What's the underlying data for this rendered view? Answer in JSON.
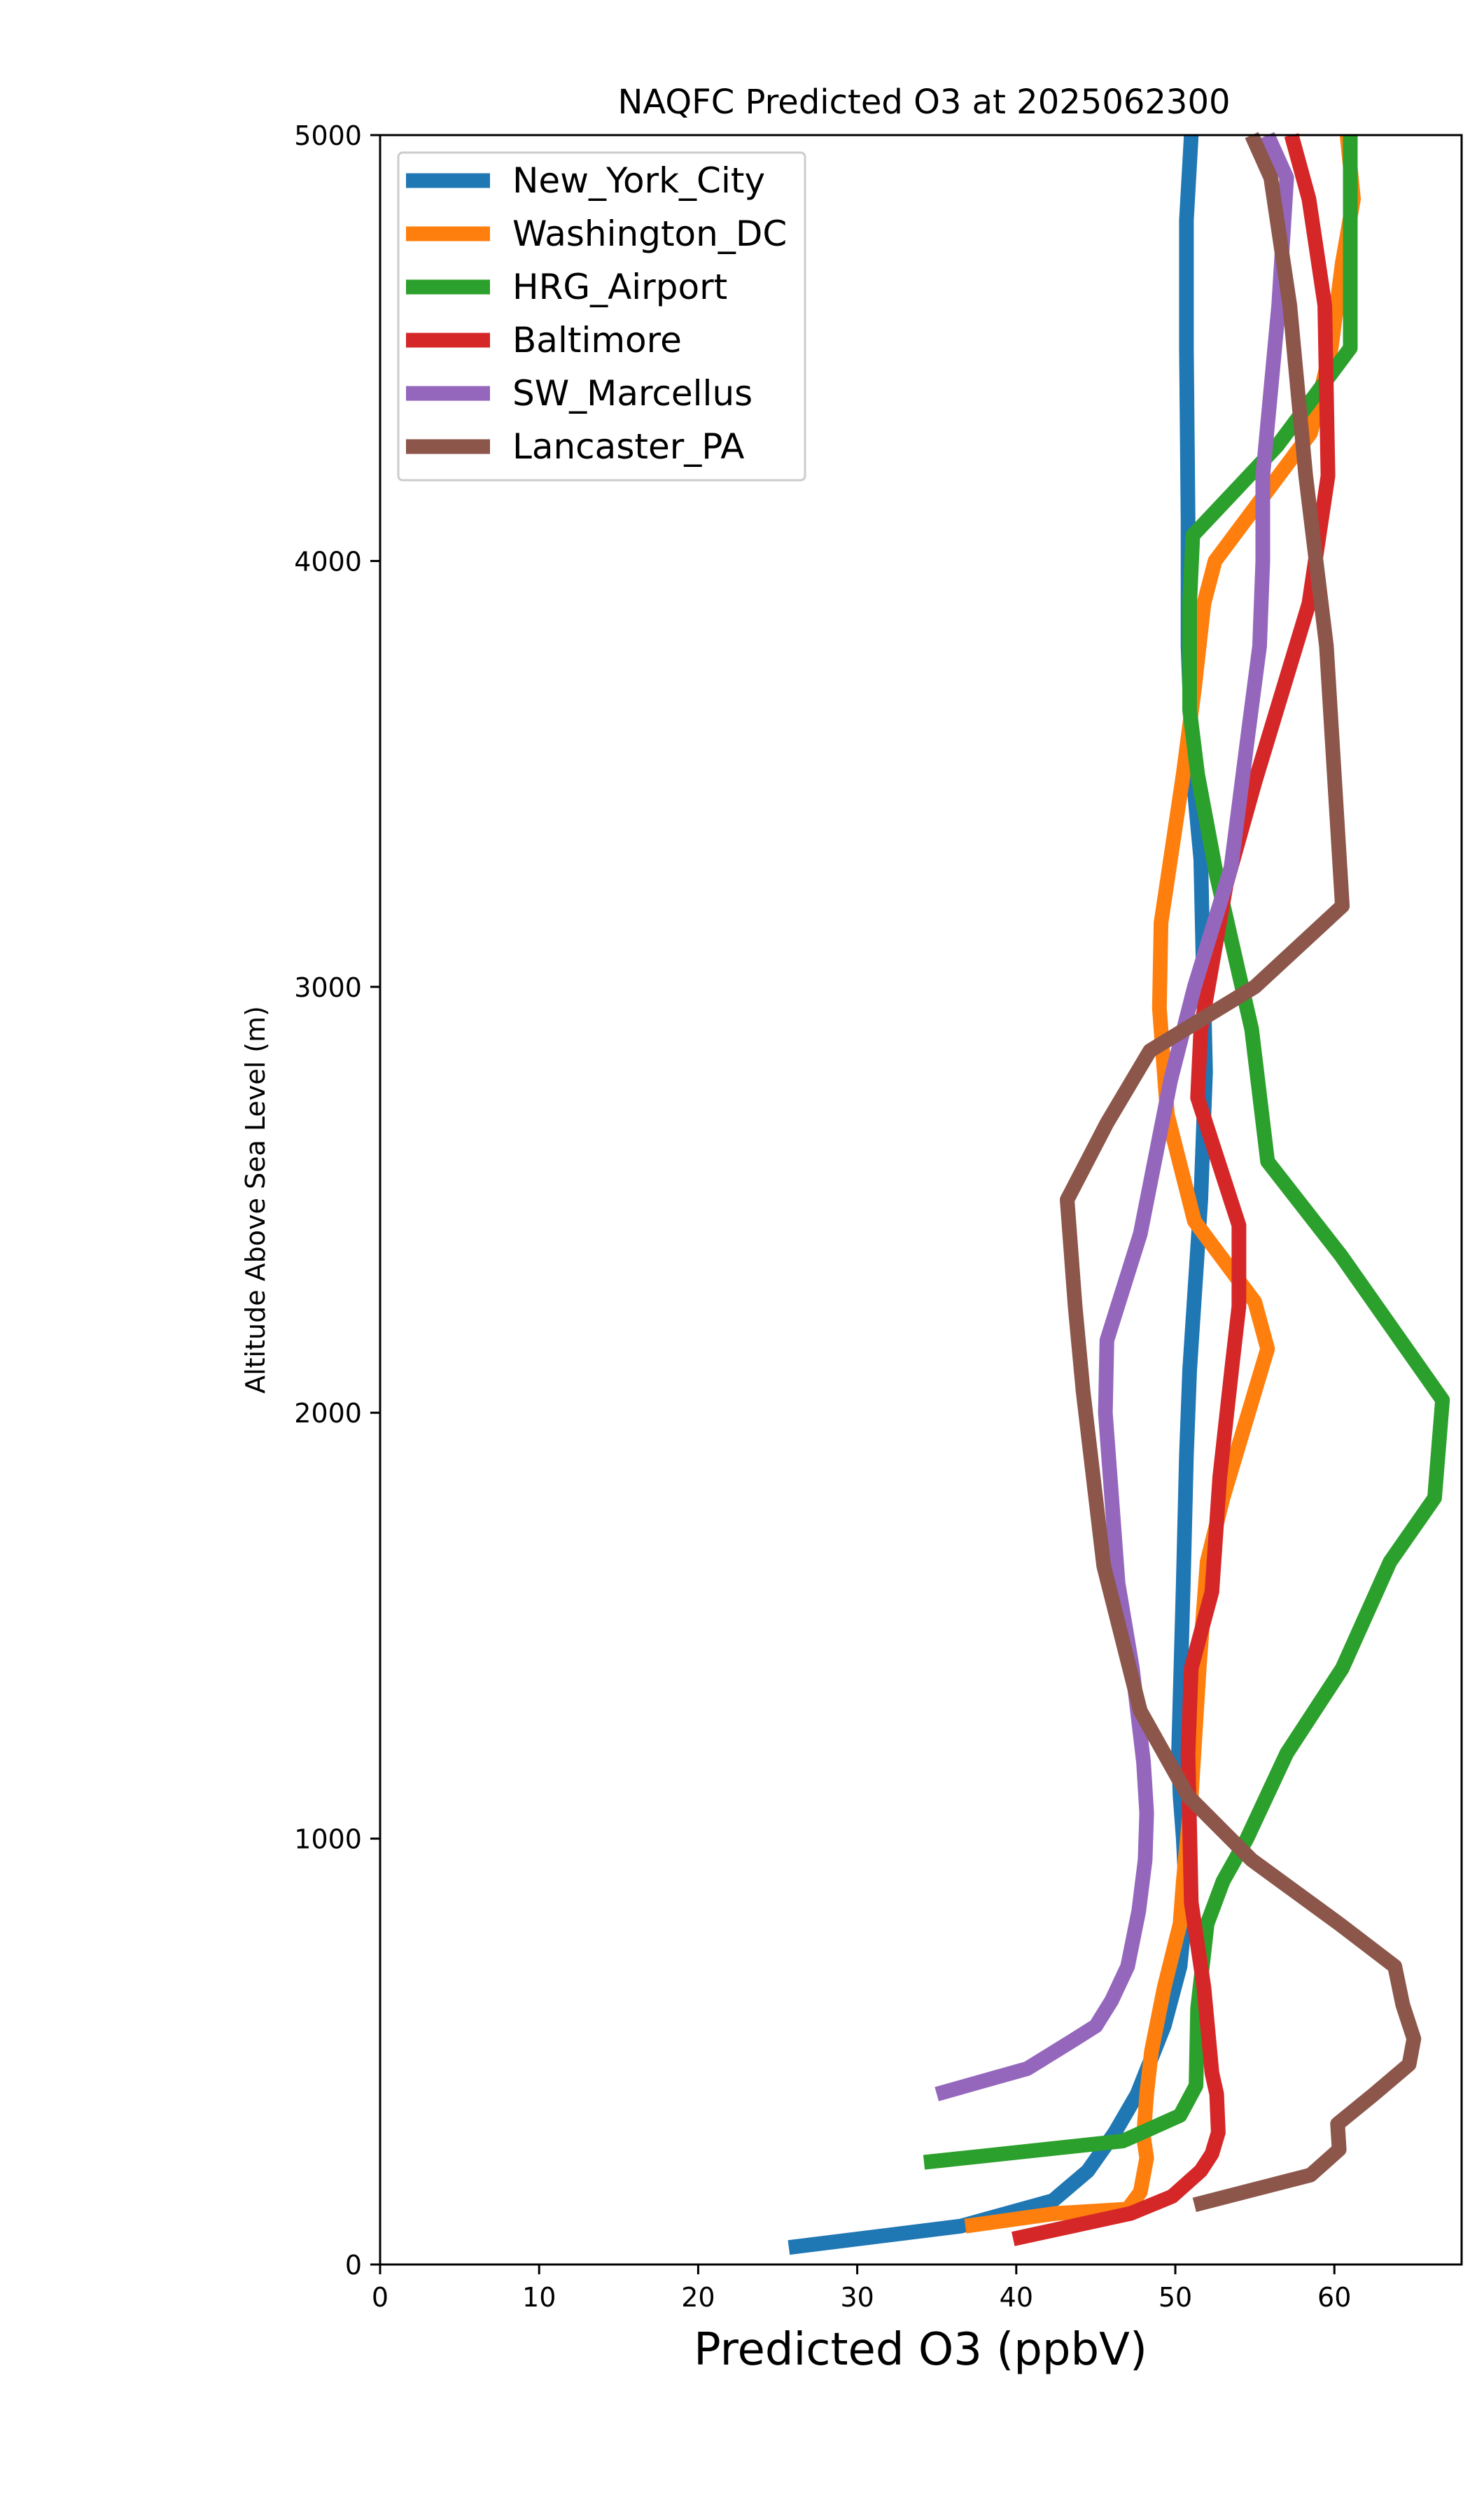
{
  "chart_data": {
    "type": "line",
    "title": "NAQFC Predicted O3 at 2025062300",
    "xlabel": "Predicted O3 (ppbV)",
    "ylabel": "Altitude Above Sea Level (m)",
    "xlim": [
      0,
      68
    ],
    "ylim": [
      0,
      5000
    ],
    "xticks": [
      "0",
      "10",
      "20",
      "30",
      "40",
      "50",
      "60"
    ],
    "yticks": [
      "0",
      "1000",
      "2000",
      "3000",
      "4000",
      "5000"
    ],
    "grid": false,
    "legend_position": "upper-left",
    "series": [
      {
        "name": "New_York_City",
        "color": "#1f77b4",
        "points": [
          [
            25.7,
            40
          ],
          [
            36.5,
            90
          ],
          [
            42.3,
            150
          ],
          [
            44.5,
            220
          ],
          [
            46.2,
            310
          ],
          [
            47.6,
            400
          ],
          [
            49.3,
            560
          ],
          [
            50.3,
            700
          ],
          [
            50.7,
            850
          ],
          [
            50.5,
            1000
          ],
          [
            50.3,
            1100
          ],
          [
            50.2,
            1200
          ],
          [
            50.5,
            1600
          ],
          [
            50.7,
            1900
          ],
          [
            50.9,
            2100
          ],
          [
            51.6,
            2500
          ],
          [
            51.9,
            2800
          ],
          [
            51.6,
            3300
          ],
          [
            51.1,
            3500
          ],
          [
            50.8,
            3800
          ],
          [
            50.8,
            3900
          ],
          [
            50.8,
            4100
          ],
          [
            50.7,
            4500
          ],
          [
            50.7,
            4800
          ],
          [
            51.0,
            5000
          ]
        ]
      },
      {
        "name": "Washington_DC",
        "color": "#ff7f0e",
        "points": [
          [
            36.8,
            90
          ],
          [
            42.5,
            120
          ],
          [
            47.0,
            130
          ],
          [
            47.8,
            170
          ],
          [
            48.2,
            250
          ],
          [
            48.0,
            300
          ],
          [
            48.2,
            400
          ],
          [
            48.5,
            500
          ],
          [
            49.3,
            650
          ],
          [
            50.3,
            800
          ],
          [
            50.5,
            900
          ],
          [
            51.0,
            1100
          ],
          [
            51.5,
            1400
          ],
          [
            52.0,
            1650
          ],
          [
            53.0,
            1800
          ],
          [
            55.8,
            2150
          ],
          [
            55.0,
            2260
          ],
          [
            51.2,
            2450
          ],
          [
            49.5,
            2700
          ],
          [
            49.0,
            2950
          ],
          [
            49.1,
            3150
          ],
          [
            50.5,
            3500
          ],
          [
            51.2,
            3700
          ],
          [
            51.8,
            3900
          ],
          [
            52.5,
            4000
          ],
          [
            58.5,
            4300
          ],
          [
            59.8,
            4500
          ],
          [
            60.5,
            4700
          ],
          [
            61.2,
            4850
          ],
          [
            60.8,
            5000
          ]
        ]
      },
      {
        "name": "HRG_Airport",
        "color": "#2ca02c",
        "points": [
          [
            34.2,
            240
          ],
          [
            46.7,
            290
          ],
          [
            50.3,
            350
          ],
          [
            51.3,
            420
          ],
          [
            51.4,
            600
          ],
          [
            52.0,
            800
          ],
          [
            53.0,
            900
          ],
          [
            54.5,
            1000
          ],
          [
            57.0,
            1200
          ],
          [
            60.5,
            1400
          ],
          [
            63.5,
            1650
          ],
          [
            66.3,
            1800
          ],
          [
            66.8,
            2030
          ],
          [
            60.4,
            2370
          ],
          [
            55.8,
            2590
          ],
          [
            54.8,
            2900
          ],
          [
            52.6,
            3260
          ],
          [
            51.4,
            3500
          ],
          [
            50.9,
            3650
          ],
          [
            50.9,
            3900
          ],
          [
            51.1,
            4060
          ],
          [
            56.4,
            4270
          ],
          [
            60.6,
            4480
          ],
          [
            61.0,
            4500
          ],
          [
            61.0,
            5000
          ]
        ]
      },
      {
        "name": "Baltimore",
        "color": "#d62728",
        "points": [
          [
            39.8,
            60
          ],
          [
            47.2,
            120
          ],
          [
            49.8,
            160
          ],
          [
            51.6,
            220
          ],
          [
            52.3,
            260
          ],
          [
            52.7,
            310
          ],
          [
            52.6,
            400
          ],
          [
            52.3,
            450
          ],
          [
            51.8,
            650
          ],
          [
            51.0,
            850
          ],
          [
            50.8,
            1200
          ],
          [
            51.0,
            1400
          ],
          [
            52.3,
            1580
          ],
          [
            52.8,
            1850
          ],
          [
            53.6,
            2120
          ],
          [
            54.0,
            2250
          ],
          [
            54.0,
            2440
          ],
          [
            51.4,
            2740
          ],
          [
            51.6,
            2900
          ],
          [
            53.2,
            3240
          ],
          [
            55.0,
            3480
          ],
          [
            58.4,
            3900
          ],
          [
            59.6,
            4200
          ],
          [
            59.4,
            4600
          ],
          [
            58.4,
            4850
          ],
          [
            57.3,
            5000
          ]
        ]
      },
      {
        "name": "SW_Marcellus",
        "color": "#9467bd",
        "points": [
          [
            35.0,
            400
          ],
          [
            40.7,
            460
          ],
          [
            43.3,
            520
          ],
          [
            45.0,
            560
          ],
          [
            46.0,
            620
          ],
          [
            47.0,
            700
          ],
          [
            47.7,
            830
          ],
          [
            48.1,
            950
          ],
          [
            48.2,
            1060
          ],
          [
            48.0,
            1180
          ],
          [
            47.3,
            1400
          ],
          [
            46.4,
            1600
          ],
          [
            45.6,
            2000
          ],
          [
            45.7,
            2170
          ],
          [
            47.8,
            2420
          ],
          [
            49.7,
            2780
          ],
          [
            51.2,
            3000
          ],
          [
            53.5,
            3280
          ],
          [
            54.6,
            3600
          ],
          [
            55.3,
            3800
          ],
          [
            55.5,
            4000
          ],
          [
            55.5,
            4200
          ],
          [
            56.5,
            4600
          ],
          [
            57.0,
            4900
          ],
          [
            55.8,
            5000
          ]
        ]
      },
      {
        "name": "Lancaster_PA",
        "color": "#8c564b",
        "points": [
          [
            51.2,
            140
          ],
          [
            58.5,
            210
          ],
          [
            60.3,
            270
          ],
          [
            60.2,
            330
          ],
          [
            62.5,
            400
          ],
          [
            64.7,
            470
          ],
          [
            65.0,
            530
          ],
          [
            64.3,
            610
          ],
          [
            63.8,
            700
          ],
          [
            60.3,
            800
          ],
          [
            54.8,
            950
          ],
          [
            50.8,
            1100
          ],
          [
            47.8,
            1300
          ],
          [
            45.5,
            1640
          ],
          [
            44.2,
            2050
          ],
          [
            43.7,
            2250
          ],
          [
            43.2,
            2500
          ],
          [
            45.7,
            2680
          ],
          [
            48.4,
            2850
          ],
          [
            55.0,
            3000
          ],
          [
            60.5,
            3190
          ],
          [
            59.5,
            3800
          ],
          [
            58.2,
            4200
          ],
          [
            57.2,
            4600
          ],
          [
            56.0,
            4900
          ],
          [
            54.8,
            5000
          ]
        ]
      }
    ]
  }
}
